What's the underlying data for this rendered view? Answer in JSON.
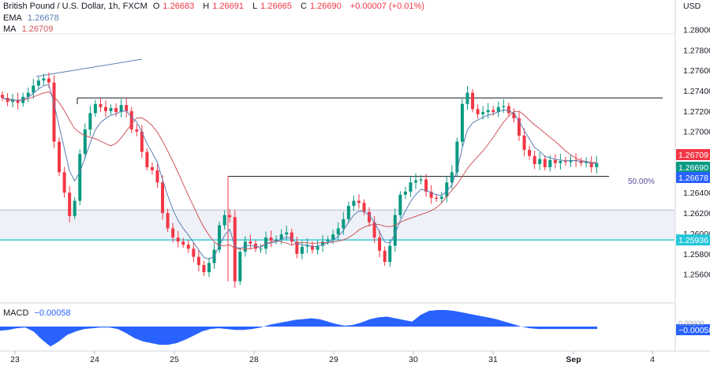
{
  "legend": {
    "symbol": "British Pound / U.S. Dollar, 1h, FXCM",
    "open_label": "O",
    "open": "1.26683",
    "high_label": "H",
    "high": "1.26691",
    "low_label": "L",
    "low": "1.26665",
    "close_label": "C",
    "close": "1.26690",
    "change": "+0.00007 (+0.01%)",
    "ema_label": "EMA",
    "ema_value": "1.26678",
    "ma_label": "MA",
    "ma_value": "1.26709",
    "macd_label": "MACD",
    "macd_value": "−0.00058"
  },
  "price_axis": {
    "currency": "USD",
    "ticks": [
      "1.28000",
      "1.27800",
      "1.27600",
      "1.27400",
      "1.27200",
      "1.27000",
      "1.26800",
      "1.26600",
      "1.26400",
      "1.26200",
      "1.26000",
      "1.25800",
      "1.25600"
    ],
    "tags": {
      "ma": "1.26709",
      "close": "1.26690",
      "ema": "1.26678",
      "support": "1.25936",
      "macd": "−0.00058",
      "macd_hidden": "0.00000"
    }
  },
  "time_axis": {
    "ticks": [
      "23",
      "24",
      "25",
      "28",
      "29",
      "30",
      "31",
      "Sep",
      "4"
    ]
  },
  "fib_label": "50.00%",
  "colors": {
    "up": "#089981",
    "down": "#f23645",
    "ema": "#5b7fb5",
    "ma": "#d0565b",
    "macd": "#2962ff",
    "support": "#26c6da",
    "zone": "#eef1f7",
    "line": "#131722"
  },
  "chart_data": {
    "type": "candlestick",
    "title": "British Pound / U.S. Dollar, 1h, FXCM",
    "ylabel": "USD",
    "ylim": [
      1.2545,
      1.2812
    ],
    "x_ticks": [
      "23",
      "24",
      "25",
      "28",
      "29",
      "30",
      "31",
      "Sep",
      "4"
    ],
    "hourly_close": [
      1.2733,
      1.2729,
      1.2731,
      1.2728,
      1.2734,
      1.2738,
      1.2745,
      1.275,
      1.2752,
      1.2748,
      1.269,
      1.266,
      1.264,
      1.2617,
      1.2632,
      1.2678,
      1.2702,
      1.2718,
      1.2727,
      1.2724,
      1.272,
      1.2723,
      1.2719,
      1.2726,
      1.272,
      1.2702,
      1.27,
      1.268,
      1.2665,
      1.2662,
      1.265,
      1.262,
      1.2605,
      1.2596,
      1.2592,
      1.2589,
      1.2585,
      1.2577,
      1.2569,
      1.2562,
      1.2571,
      1.2584,
      1.2608,
      1.2618,
      1.2616,
      1.2553,
      1.2582,
      1.2592,
      1.259,
      1.2585,
      1.2585,
      1.2596,
      1.2593,
      1.2594,
      1.2599,
      1.2601,
      1.2592,
      1.258,
      1.2587,
      1.2588,
      1.2584,
      1.2588,
      1.2592,
      1.2594,
      1.2599,
      1.2605,
      1.2614,
      1.2627,
      1.2632,
      1.263,
      1.2621,
      1.2611,
      1.2596,
      1.2583,
      1.2572,
      1.2588,
      1.2618,
      1.2638,
      1.2641,
      1.265,
      1.2652,
      1.2653,
      1.2641,
      1.2635,
      1.2634,
      1.2636,
      1.265,
      1.266,
      1.269,
      1.2727,
      1.2738,
      1.2722,
      1.2717,
      1.2719,
      1.2721,
      1.2719,
      1.2724,
      1.2725,
      1.2718,
      1.2713,
      1.2696,
      1.2682,
      1.2676,
      1.2668,
      1.2673,
      1.2665,
      1.2672,
      1.2669,
      1.2671,
      1.267,
      1.2672,
      1.2671,
      1.2669,
      1.267,
      1.2665,
      1.2669
    ],
    "indicators": {
      "EMA": {
        "last": 1.26678
      },
      "MA": {
        "last": 1.26709
      },
      "MACD": {
        "last": -0.00058
      }
    },
    "levels": [
      {
        "name": "resistance",
        "value": 1.2733
      },
      {
        "name": "fib_50",
        "label": "50.00%",
        "value": 1.2656
      },
      {
        "name": "support",
        "value": 1.25936
      },
      {
        "name": "zone_top",
        "value": 1.2623
      }
    ],
    "macd_histogram": [
      -0.5,
      -0.4,
      -0.2,
      -0.1,
      -0.6,
      -1.6,
      -2.4,
      -1.8,
      -1.0,
      -0.6,
      -0.3,
      -0.2,
      -0.1,
      -0.1,
      -0.3,
      -0.8,
      -1.4,
      -1.8,
      -2.0,
      -2.2,
      -2.2,
      -2.0,
      -1.6,
      -1.1,
      -0.6,
      -0.3,
      -0.2,
      -0.3,
      -0.4,
      -0.4,
      -0.3,
      -0.1,
      0.2,
      0.4,
      0.6,
      0.8,
      0.9,
      1.0,
      0.9,
      0.6,
      0.3,
      0.1,
      0.2,
      0.5,
      0.9,
      1.1,
      1.2,
      1.0,
      0.8,
      0.6,
      1.4,
      1.9,
      2.0,
      2.0,
      1.9,
      1.7,
      1.5,
      1.3,
      1.1,
      0.9,
      0.6,
      0.3,
      0.0,
      -0.2,
      -0.3,
      -0.3,
      -0.3,
      -0.3,
      -0.3,
      -0.3,
      -0.3,
      -0.3
    ]
  }
}
